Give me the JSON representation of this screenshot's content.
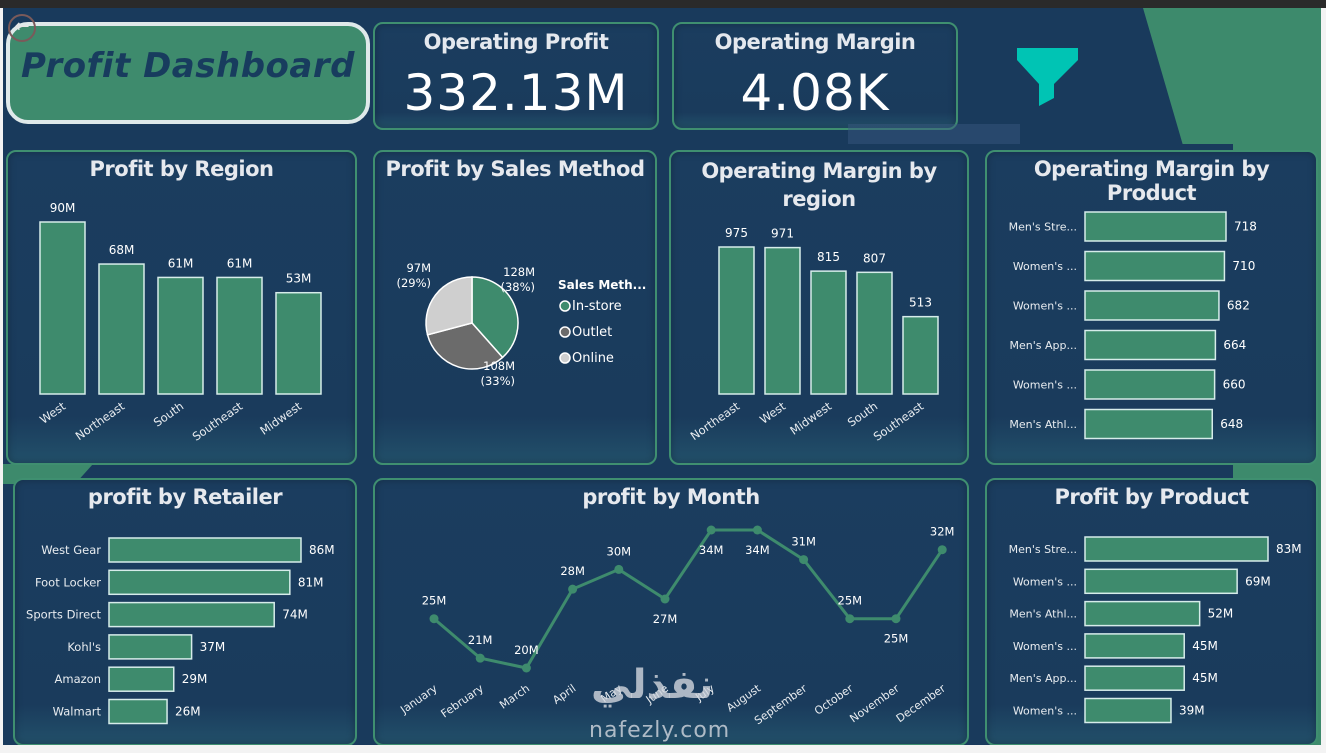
{
  "header": {
    "title": "Profit Dashboard",
    "back_icon": "arrow-left-circle-icon",
    "filter_icon": "funnel-icon"
  },
  "kpis": [
    {
      "label": "Operating Profit",
      "value": "332.13M"
    },
    {
      "label": "Operating Margin",
      "value": "4.08K"
    }
  ],
  "colors": {
    "background": "#193a5c",
    "accent_green": "#3e8b6d",
    "panel_border": "#3f8f70",
    "funnel": "#00c4b4",
    "pie_instore": "#3e8b6d",
    "pie_outlet": "#6b6b6b",
    "pie_online": "#cfcfcf"
  },
  "watermark": {
    "arabic": "نفذلي",
    "latin": "nafezly.com"
  },
  "chart_data": [
    {
      "id": "profit_by_region",
      "type": "bar",
      "title": "Profit by Region",
      "categories": [
        "West",
        "Northeast",
        "South",
        "Southeast",
        "Midwest"
      ],
      "values": [
        90,
        68,
        61,
        61,
        53
      ],
      "labels": [
        "90M",
        "68M",
        "61M",
        "61M",
        "53M"
      ],
      "unit": "M",
      "ylim": [
        0,
        90
      ]
    },
    {
      "id": "profit_by_sales_method",
      "type": "pie",
      "title": "Profit by Sales Method",
      "legend_title": "Sales Meth...",
      "legend_position": "right",
      "categories": [
        "In-store",
        "Outlet",
        "Online"
      ],
      "values": [
        128,
        108,
        97
      ],
      "labels": [
        "128M\n(38%)",
        "108M\n(33%)",
        "97M\n(29%)"
      ],
      "label_lines": [
        [
          "128M",
          "(38%)"
        ],
        [
          "108M",
          "(33%)"
        ],
        [
          "97M",
          "(29%)"
        ]
      ],
      "percents": [
        38,
        33,
        29
      ]
    },
    {
      "id": "operating_margin_by_region",
      "type": "bar",
      "title": "Operating Margin by region",
      "title_lines": [
        "Operating Margin by",
        "region"
      ],
      "categories": [
        "Northeast",
        "West",
        "Midwest",
        "South",
        "Southeast"
      ],
      "values": [
        975,
        971,
        815,
        807,
        513
      ],
      "labels": [
        "975",
        "971",
        "815",
        "807",
        "513"
      ],
      "ylim": [
        0,
        975
      ]
    },
    {
      "id": "operating_margin_by_product",
      "type": "bar",
      "orientation": "horizontal",
      "title": "Operating Margin by Product",
      "categories": [
        "Men's Stre...",
        "Women's ...",
        "Women's ...",
        "Men's App...",
        "Women's ...",
        "Men's Athl..."
      ],
      "values": [
        718,
        710,
        682,
        664,
        660,
        648
      ],
      "labels": [
        "718",
        "710",
        "682",
        "664",
        "660",
        "648"
      ],
      "xlim": [
        0,
        718
      ]
    },
    {
      "id": "profit_by_retailer",
      "type": "bar",
      "orientation": "horizontal",
      "title": "profit by Retailer",
      "categories": [
        "West Gear",
        "Foot Locker",
        "Sports Direct",
        "Kohl's",
        "Amazon",
        "Walmart"
      ],
      "values": [
        86,
        81,
        74,
        37,
        29,
        26
      ],
      "labels": [
        "86M",
        "81M",
        "74M",
        "37M",
        "29M",
        "26M"
      ],
      "xlim": [
        0,
        86
      ]
    },
    {
      "id": "profit_by_month",
      "type": "line",
      "title": "profit by Month",
      "categories": [
        "January",
        "February",
        "March",
        "April",
        "May",
        "June",
        "July",
        "August",
        "September",
        "October",
        "November",
        "December"
      ],
      "values": [
        25,
        21,
        20,
        28,
        30,
        27,
        34,
        34,
        31,
        25,
        25,
        32
      ],
      "labels": [
        "25M",
        "21M",
        "20M",
        "28M",
        "30M",
        "27M",
        "34M",
        "34M",
        "31M",
        "25M",
        "25M",
        "32M"
      ],
      "label_side": [
        "above",
        "above",
        "above",
        "above",
        "above",
        "below",
        "below",
        "below",
        "above",
        "above",
        "below",
        "above"
      ],
      "ylim": [
        20,
        34
      ]
    },
    {
      "id": "profit_by_product",
      "type": "bar",
      "orientation": "horizontal",
      "title": "Profit by Product",
      "categories": [
        "Men's Stre...",
        "Women's ...",
        "Men's Athl...",
        "Women's ...",
        "Men's App...",
        "Women's ..."
      ],
      "values": [
        83,
        69,
        52,
        45,
        45,
        39
      ],
      "labels": [
        "83M",
        "69M",
        "52M",
        "45M",
        "45M",
        "39M"
      ],
      "xlim": [
        0,
        83
      ]
    }
  ]
}
